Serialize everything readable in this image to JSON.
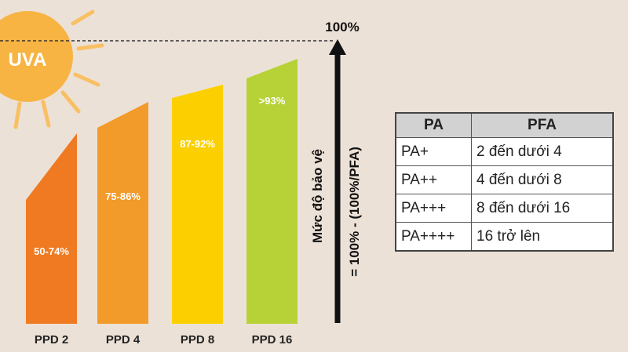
{
  "header": {
    "badge": "UVA",
    "top_label": "100%",
    "axis_label": "Mức độ bảo vệ",
    "formula": "= 100% - (100%/PFA)"
  },
  "bars": [
    {
      "label": "PPD 2",
      "value_label": "50-74%"
    },
    {
      "label": "PPD 4",
      "value_label": "75-86%"
    },
    {
      "label": "PPD 8",
      "value_label": "87-92%"
    },
    {
      "label": "PPD 16",
      "value_label": ">93%"
    }
  ],
  "table": {
    "columns": [
      "PA",
      "PFA"
    ],
    "rows": [
      [
        "PA+",
        "2 đến dưới 4"
      ],
      [
        "PA++",
        "4 đến dưới 8"
      ],
      [
        "PA+++",
        "8 đến dưới 16"
      ],
      [
        "PA++++",
        "16 trở lên"
      ]
    ]
  }
}
